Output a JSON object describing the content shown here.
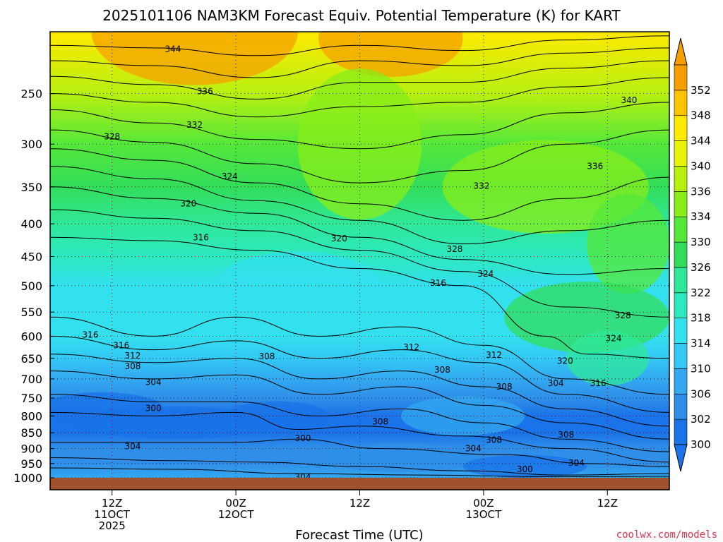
{
  "chart_data": {
    "type": "heatmap",
    "title": "2025101106 NAM3KM Forecast Equiv. Potential Temperature (K) for KART",
    "xlabel": "Forecast Time (UTC)",
    "ylabel": "",
    "x_ticks": [
      {
        "hour": 6,
        "lines": [
          "12Z",
          "11OCT",
          "2025"
        ]
      },
      {
        "hour": 18,
        "lines": [
          "00Z",
          "12OCT"
        ]
      },
      {
        "hour": 30,
        "lines": [
          "12Z"
        ]
      },
      {
        "hour": 42,
        "lines": [
          "00Z",
          "13OCT"
        ]
      },
      {
        "hour": 54,
        "lines": [
          "12Z"
        ]
      }
    ],
    "xlim": [
      0,
      60
    ],
    "y_ticks": [
      250,
      300,
      350,
      400,
      450,
      500,
      550,
      600,
      650,
      700,
      750,
      800,
      850,
      900,
      950,
      1000
    ],
    "ylim": [
      200,
      1000
    ],
    "y_scale": "log-pressure (inverted)",
    "grid": true,
    "colorbar": {
      "levels": [
        300,
        302,
        306,
        310,
        314,
        318,
        322,
        326,
        330,
        334,
        336,
        340,
        344,
        348,
        352
      ],
      "labels": [
        "300",
        "302",
        "306",
        "310",
        "314",
        "318",
        "322",
        "326",
        "330",
        "334",
        "336",
        "340",
        "344",
        "348",
        "352"
      ],
      "colors": [
        "#1a73e8",
        "#2f8fe8",
        "#33a8f0",
        "#33c8f5",
        "#33e0ee",
        "#2ee8c0",
        "#2fe89a",
        "#33dd5a",
        "#55e83a",
        "#88ee1a",
        "#b8f010",
        "#e8f50a",
        "#ffea00",
        "#ffc400",
        "#f5a000"
      ]
    },
    "contour_interval": 2,
    "contour_labels": [
      {
        "v": "344",
        "hour": 11.9,
        "p": 213
      },
      {
        "v": "336",
        "hour": 15.0,
        "p": 248
      },
      {
        "v": "332",
        "hour": 14.0,
        "p": 280
      },
      {
        "v": "328",
        "hour": 6.0,
        "p": 292
      },
      {
        "v": "324",
        "hour": 17.4,
        "p": 337
      },
      {
        "v": "320",
        "hour": 13.4,
        "p": 372
      },
      {
        "v": "316",
        "hour": 14.6,
        "p": 420
      },
      {
        "v": "340",
        "hour": 56.1,
        "p": 256
      },
      {
        "v": "336",
        "hour": 52.8,
        "p": 325
      },
      {
        "v": "332",
        "hour": 41.8,
        "p": 349
      },
      {
        "v": "328",
        "hour": 39.2,
        "p": 438
      },
      {
        "v": "324",
        "hour": 42.2,
        "p": 479
      },
      {
        "v": "320",
        "hour": 28.0,
        "p": 422
      },
      {
        "v": "316",
        "hour": 37.6,
        "p": 495
      },
      {
        "v": "328",
        "hour": 55.5,
        "p": 557
      },
      {
        "v": "324",
        "hour": 54.6,
        "p": 605
      },
      {
        "v": "320",
        "hour": 49.9,
        "p": 656
      },
      {
        "v": "316",
        "hour": 53.1,
        "p": 711
      },
      {
        "v": "316",
        "hour": 3.9,
        "p": 597
      },
      {
        "v": "316",
        "hour": 6.9,
        "p": 620
      },
      {
        "v": "312",
        "hour": 8.0,
        "p": 644
      },
      {
        "v": "308",
        "hour": 8.0,
        "p": 669
      },
      {
        "v": "304",
        "hour": 10.0,
        "p": 708
      },
      {
        "v": "300",
        "hour": 10.0,
        "p": 778
      },
      {
        "v": "304",
        "hour": 8.0,
        "p": 893
      },
      {
        "v": "308",
        "hour": 21.0,
        "p": 645
      },
      {
        "v": "300",
        "hour": 24.5,
        "p": 867
      },
      {
        "v": "304",
        "hour": 24.5,
        "p": 997
      },
      {
        "v": "312",
        "hour": 35.0,
        "p": 624
      },
      {
        "v": "308",
        "hour": 38.0,
        "p": 677
      },
      {
        "v": "312",
        "hour": 43.0,
        "p": 642
      },
      {
        "v": "308",
        "hour": 44.0,
        "p": 720
      },
      {
        "v": "308",
        "hour": 32.0,
        "p": 817
      },
      {
        "v": "304",
        "hour": 49.0,
        "p": 711
      },
      {
        "v": "308",
        "hour": 43.0,
        "p": 873
      },
      {
        "v": "304",
        "hour": 41.0,
        "p": 900
      },
      {
        "v": "308",
        "hour": 50.0,
        "p": 856
      },
      {
        "v": "304",
        "hour": 51.0,
        "p": 948
      },
      {
        "v": "300",
        "hour": 46.0,
        "p": 970
      }
    ]
  },
  "credit": "coolwx.com/models"
}
